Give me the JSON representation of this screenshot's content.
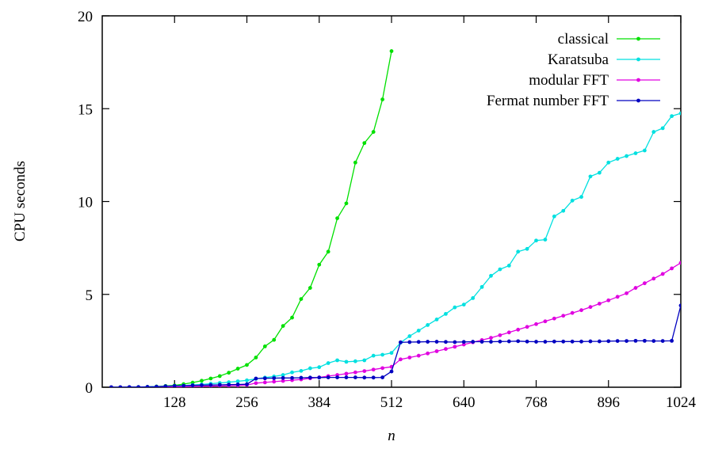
{
  "chart_data": {
    "type": "line",
    "title": "",
    "xlabel": "n",
    "ylabel": "CPU seconds",
    "xlim": [
      0,
      1024
    ],
    "ylim": [
      0,
      20
    ],
    "xticks": [
      128,
      256,
      384,
      512,
      640,
      768,
      896,
      1024
    ],
    "yticks": [
      0,
      5,
      10,
      15,
      20
    ],
    "legend_position": "top-right",
    "grid": false,
    "series": [
      {
        "name": "classical",
        "color": "#00e000",
        "x": [
          16,
          32,
          48,
          64,
          80,
          96,
          112,
          128,
          144,
          160,
          176,
          192,
          208,
          224,
          240,
          256,
          272,
          288,
          304,
          320,
          336,
          352,
          368,
          384,
          400,
          416,
          432,
          448,
          464,
          480,
          496,
          512
        ],
        "y": [
          0.0,
          0.0,
          0.0,
          0.01,
          0.02,
          0.04,
          0.07,
          0.1,
          0.17,
          0.25,
          0.35,
          0.47,
          0.6,
          0.78,
          1.0,
          1.2,
          1.6,
          2.2,
          2.55,
          3.3,
          3.75,
          4.75,
          5.35,
          6.6,
          7.3,
          9.1,
          9.9,
          12.1,
          13.15,
          13.75,
          15.5,
          18.1
        ]
      },
      {
        "name": "Karatsuba",
        "color": "#00e0e0",
        "x": [
          16,
          32,
          48,
          64,
          80,
          96,
          112,
          128,
          144,
          160,
          176,
          192,
          208,
          224,
          240,
          256,
          272,
          288,
          304,
          320,
          336,
          352,
          368,
          384,
          400,
          416,
          432,
          448,
          464,
          480,
          496,
          512,
          528,
          544,
          560,
          576,
          592,
          608,
          624,
          640,
          656,
          672,
          688,
          704,
          720,
          736,
          752,
          768,
          784,
          800,
          816,
          832,
          848,
          864,
          880,
          896,
          912,
          928,
          944,
          960,
          976,
          992,
          1008,
          1024
        ],
        "y": [
          0.0,
          0.0,
          0.0,
          0.01,
          0.02,
          0.03,
          0.05,
          0.07,
          0.09,
          0.12,
          0.15,
          0.19,
          0.23,
          0.27,
          0.32,
          0.37,
          0.45,
          0.52,
          0.58,
          0.66,
          0.8,
          0.88,
          1.02,
          1.08,
          1.3,
          1.45,
          1.37,
          1.4,
          1.45,
          1.7,
          1.75,
          1.85,
          2.4,
          2.75,
          3.05,
          3.35,
          3.65,
          3.95,
          4.3,
          4.45,
          4.8,
          5.4,
          6.0,
          6.35,
          6.55,
          7.3,
          7.45,
          7.9,
          7.95,
          9.2,
          9.5,
          10.05,
          10.25,
          11.35,
          11.55,
          12.1,
          12.3,
          12.45,
          12.6,
          12.75,
          13.75,
          13.95,
          14.6,
          14.75
        ]
      },
      {
        "name": "modular FFT",
        "color": "#e000e0",
        "x": [
          16,
          32,
          48,
          64,
          80,
          96,
          112,
          128,
          144,
          160,
          176,
          192,
          208,
          224,
          240,
          256,
          272,
          288,
          304,
          320,
          336,
          352,
          368,
          384,
          400,
          416,
          432,
          448,
          464,
          480,
          496,
          512,
          528,
          544,
          560,
          576,
          592,
          608,
          624,
          640,
          656,
          672,
          688,
          704,
          720,
          736,
          752,
          768,
          784,
          800,
          816,
          832,
          848,
          864,
          880,
          896,
          912,
          928,
          944,
          960,
          976,
          992,
          1008,
          1024
        ],
        "y": [
          0.0,
          0.0,
          0.0,
          0.0,
          0.01,
          0.01,
          0.02,
          0.02,
          0.03,
          0.04,
          0.05,
          0.06,
          0.07,
          0.08,
          0.1,
          0.12,
          0.22,
          0.26,
          0.3,
          0.34,
          0.38,
          0.42,
          0.48,
          0.53,
          0.6,
          0.66,
          0.73,
          0.8,
          0.87,
          0.95,
          1.03,
          1.1,
          1.5,
          1.6,
          1.7,
          1.82,
          1.94,
          2.06,
          2.18,
          2.3,
          2.42,
          2.54,
          2.66,
          2.8,
          2.95,
          3.1,
          3.25,
          3.4,
          3.55,
          3.7,
          3.85,
          4.0,
          4.15,
          4.32,
          4.5,
          4.68,
          4.87,
          5.06,
          5.35,
          5.6,
          5.85,
          6.1,
          6.4,
          6.7
        ]
      },
      {
        "name": "Fermat number FFT",
        "color": "#0000c0",
        "x": [
          16,
          32,
          48,
          64,
          80,
          96,
          112,
          128,
          144,
          160,
          176,
          192,
          208,
          224,
          240,
          256,
          272,
          288,
          304,
          320,
          336,
          352,
          368,
          384,
          400,
          416,
          432,
          448,
          464,
          480,
          496,
          512,
          528,
          544,
          560,
          576,
          592,
          608,
          624,
          640,
          656,
          672,
          688,
          704,
          720,
          736,
          752,
          768,
          784,
          800,
          816,
          832,
          848,
          864,
          880,
          896,
          912,
          928,
          944,
          960,
          976,
          992,
          1008,
          1024
        ],
        "y": [
          0.0,
          0.0,
          0.01,
          0.01,
          0.02,
          0.03,
          0.05,
          0.07,
          0.08,
          0.1,
          0.11,
          0.12,
          0.13,
          0.14,
          0.15,
          0.16,
          0.47,
          0.48,
          0.49,
          0.5,
          0.5,
          0.51,
          0.52,
          0.52,
          0.53,
          0.53,
          0.53,
          0.53,
          0.52,
          0.52,
          0.53,
          0.85,
          2.42,
          2.43,
          2.44,
          2.45,
          2.45,
          2.44,
          2.43,
          2.44,
          2.45,
          2.45,
          2.45,
          2.46,
          2.47,
          2.48,
          2.46,
          2.45,
          2.45,
          2.46,
          2.46,
          2.46,
          2.46,
          2.47,
          2.47,
          2.48,
          2.49,
          2.49,
          2.5,
          2.5,
          2.49,
          2.49,
          2.5,
          4.4
        ]
      }
    ]
  }
}
